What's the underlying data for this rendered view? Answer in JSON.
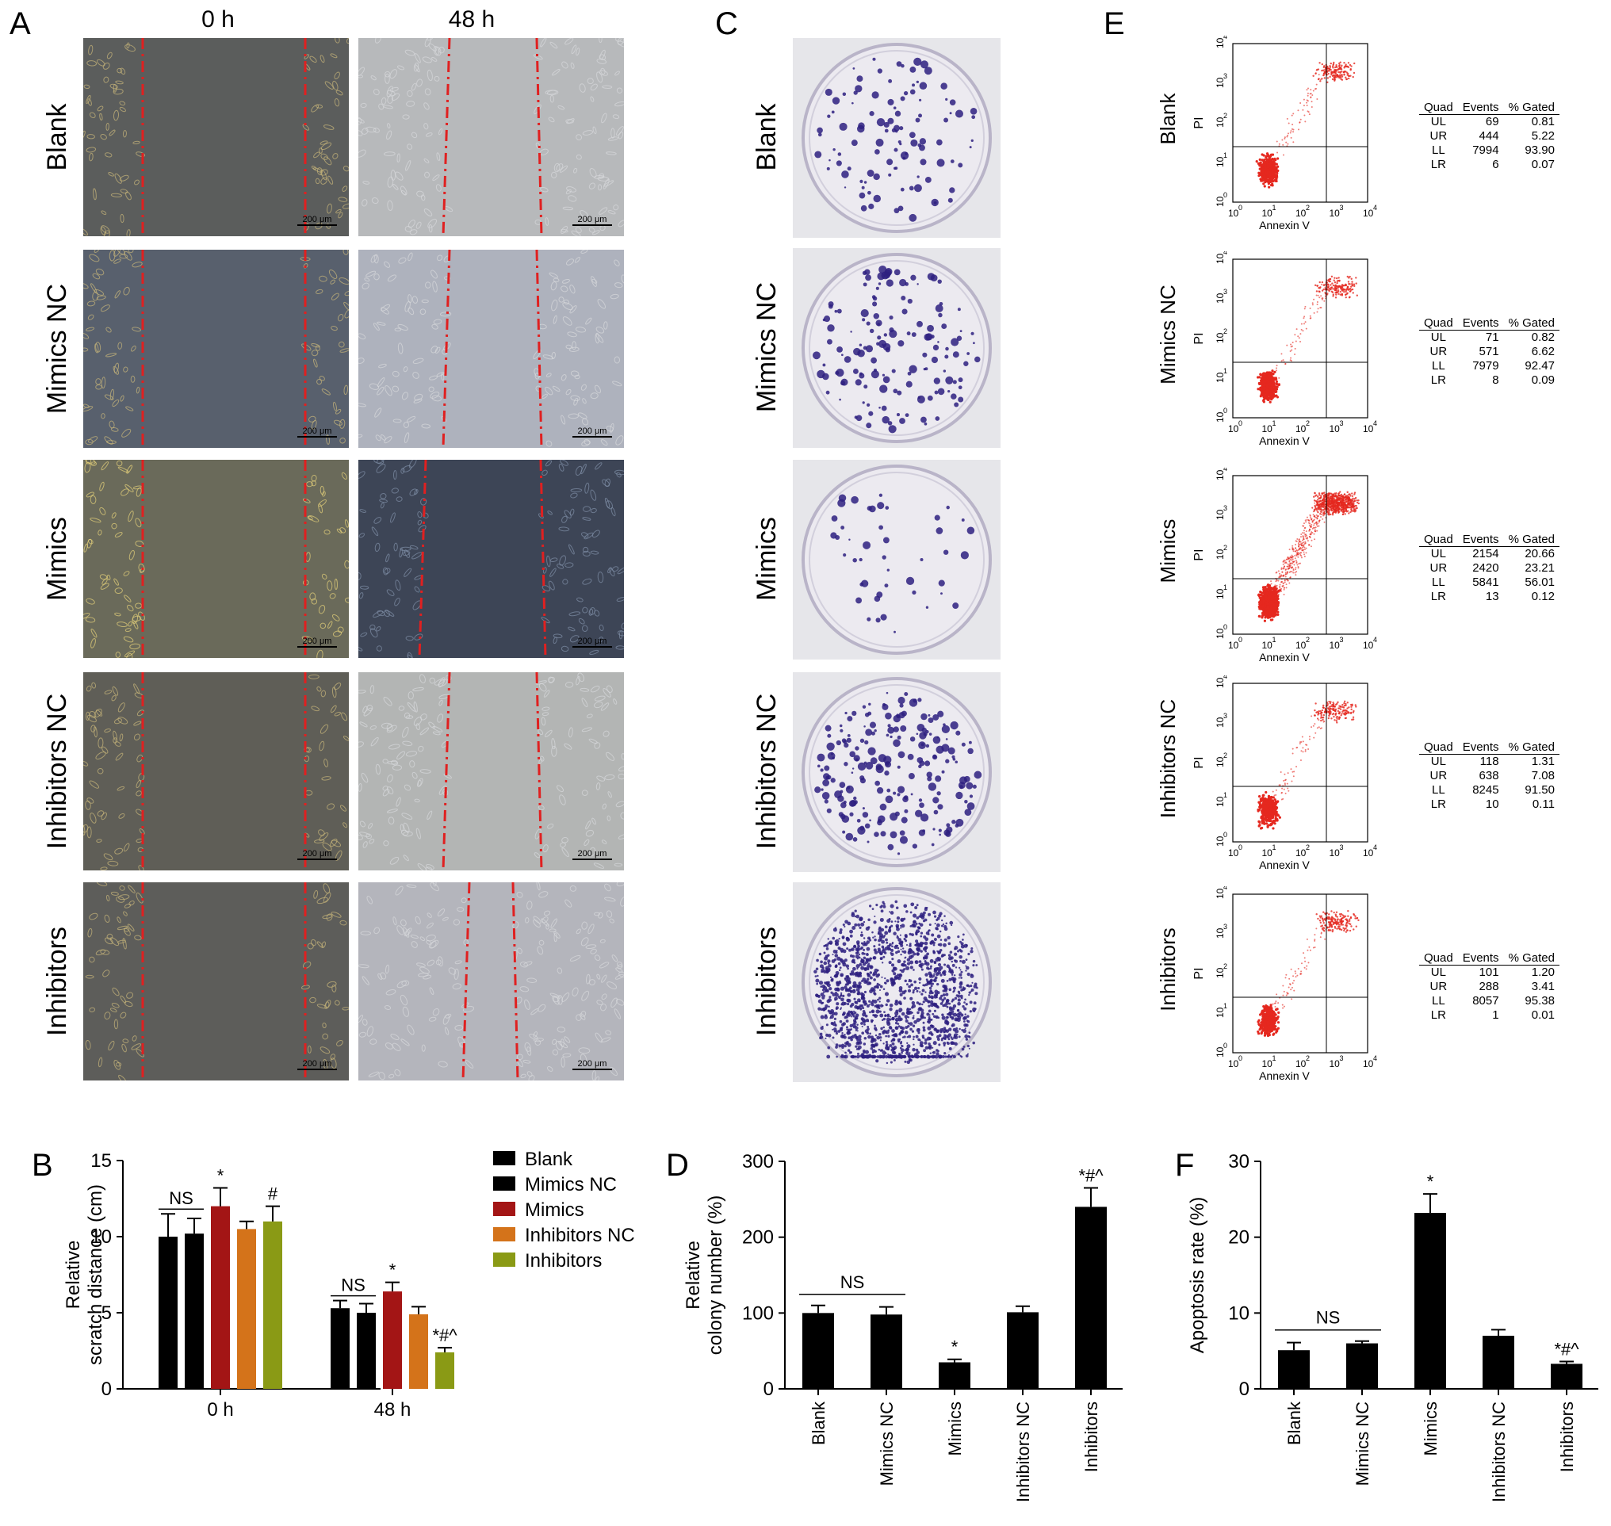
{
  "panel_labels": {
    "A": "A",
    "B": "B",
    "C": "C",
    "D": "D",
    "E": "E",
    "F": "F"
  },
  "panelA": {
    "col_heads": [
      "0 h",
      "48 h"
    ],
    "rows": [
      "Blank",
      "Mimics NC",
      "Mimics",
      "Inhibitors NC",
      "Inhibitors"
    ],
    "scale": "200 μm"
  },
  "panelC": {
    "rows": [
      "Blank",
      "Mimics NC",
      "Mimics",
      "Inhibitors NC",
      "Inhibitors"
    ]
  },
  "panelE": {
    "rows": [
      "Blank",
      "Mimics NC",
      "Mimics",
      "Inhibitors NC",
      "Inhibitors"
    ],
    "ylabel": "PI",
    "xlabel": "Annexin V",
    "ticks": [
      "10",
      "10",
      "10",
      "10",
      "10"
    ],
    "tick_exp": [
      "0",
      "1",
      "2",
      "3",
      "4"
    ],
    "table_head": [
      "Quad",
      "Events",
      "% Gated"
    ],
    "tables": [
      [
        [
          "UL",
          "69",
          "0.81"
        ],
        [
          "UR",
          "444",
          "5.22"
        ],
        [
          "LL",
          "7994",
          "93.90"
        ],
        [
          "LR",
          "6",
          "0.07"
        ]
      ],
      [
        [
          "UL",
          "71",
          "0.82"
        ],
        [
          "UR",
          "571",
          "6.62"
        ],
        [
          "LL",
          "7979",
          "92.47"
        ],
        [
          "LR",
          "8",
          "0.09"
        ]
      ],
      [
        [
          "UL",
          "2154",
          "20.66"
        ],
        [
          "UR",
          "2420",
          "23.21"
        ],
        [
          "LL",
          "5841",
          "56.01"
        ],
        [
          "LR",
          "13",
          "0.12"
        ]
      ],
      [
        [
          "UL",
          "118",
          "1.31"
        ],
        [
          "UR",
          "638",
          "7.08"
        ],
        [
          "LL",
          "8245",
          "91.50"
        ],
        [
          "LR",
          "10",
          "0.11"
        ]
      ],
      [
        [
          "UL",
          "101",
          "1.20"
        ],
        [
          "UR",
          "288",
          "3.41"
        ],
        [
          "LL",
          "8057",
          "95.38"
        ],
        [
          "LR",
          "1",
          "0.01"
        ]
      ]
    ]
  },
  "chart_data": [
    {
      "type": "bar",
      "id": "B",
      "ylabel": "Relative\nscratch distance (cm)",
      "categories": [
        "0 h",
        "48 h"
      ],
      "ylim": [
        0,
        15
      ],
      "yticks": [
        0,
        5,
        10,
        15
      ],
      "series": [
        {
          "name": "Blank",
          "color": "#000000",
          "values": [
            10.0,
            5.3
          ],
          "err": [
            1.5,
            0.5
          ]
        },
        {
          "name": "Mimics NC",
          "color": "#000000",
          "values": [
            10.2,
            5.0
          ],
          "err": [
            1.0,
            0.6
          ]
        },
        {
          "name": "Mimics",
          "color": "#a31515",
          "values": [
            12.0,
            6.4
          ],
          "err": [
            1.2,
            0.6
          ]
        },
        {
          "name": "Inhibitors NC",
          "color": "#d4731a",
          "values": [
            10.5,
            4.9
          ],
          "err": [
            0.5,
            0.5
          ]
        },
        {
          "name": "Inhibitors",
          "color": "#8a9a15",
          "values": [
            11.0,
            2.4
          ],
          "err": [
            1.0,
            0.3
          ]
        }
      ],
      "annotations": [
        {
          "group": 0,
          "series": 2,
          "text": "*"
        },
        {
          "group": 0,
          "series": 4,
          "text": "#"
        },
        {
          "group": 1,
          "series": 2,
          "text": "*"
        },
        {
          "group": 1,
          "series": 4,
          "text": "*#^"
        }
      ],
      "ns": [
        {
          "group": 0,
          "from": 0,
          "to": 1,
          "text": "NS"
        },
        {
          "group": 1,
          "from": 0,
          "to": 1,
          "text": "NS"
        }
      ],
      "legend": "right"
    },
    {
      "type": "bar",
      "id": "D",
      "ylabel": "Relative\ncolony number (%)",
      "categories": [
        "Blank",
        "Mimics NC",
        "Mimics",
        "Inhibitors NC",
        "Inhibitors"
      ],
      "ylim": [
        0,
        300
      ],
      "yticks": [
        0,
        100,
        200,
        300
      ],
      "values": [
        100,
        98,
        35,
        101,
        240
      ],
      "err": [
        10,
        10,
        4,
        8,
        25
      ],
      "annotations": [
        {
          "index": 2,
          "text": "*"
        },
        {
          "index": 4,
          "text": "*#^"
        }
      ],
      "ns": {
        "from": 0,
        "to": 1,
        "text": "NS"
      }
    },
    {
      "type": "bar",
      "id": "F",
      "ylabel": "Apoptosis rate (%)",
      "categories": [
        "Blank",
        "Mimics NC",
        "Mimics",
        "Inhibitors NC",
        "Inhibitors"
      ],
      "ylim": [
        0,
        30
      ],
      "yticks": [
        0,
        10,
        20,
        30
      ],
      "values": [
        5.1,
        6.0,
        23.2,
        7.0,
        3.3
      ],
      "err": [
        1.0,
        0.3,
        2.5,
        0.8,
        0.3
      ],
      "annotations": [
        {
          "index": 2,
          "text": "*"
        },
        {
          "index": 4,
          "text": "*#^"
        }
      ],
      "ns": {
        "from": 0,
        "to": 1,
        "text": "NS"
      }
    }
  ]
}
